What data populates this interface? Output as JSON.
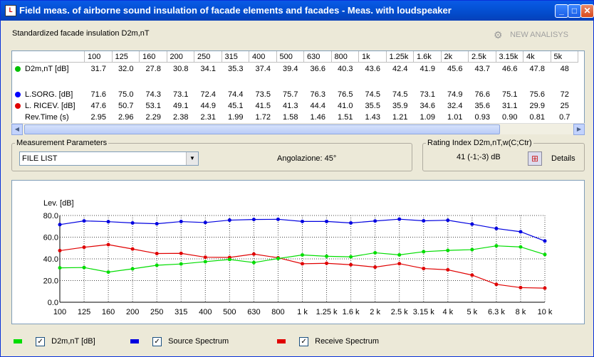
{
  "window": {
    "title": "Field meas. of airborne sound insulation of facade elements and facades - Meas. with loudspeaker",
    "icon_name": "app-icon",
    "minimize": "_",
    "maximize": "□",
    "close": "✕"
  },
  "header": {
    "label": "Standardized facade insulation D2m,nT",
    "new_analysis_label": "NEW ANALISYS",
    "new_analysis_icon": "gears-icon"
  },
  "table": {
    "columns": [
      "100",
      "125",
      "160",
      "200",
      "250",
      "315",
      "400",
      "500",
      "630",
      "800",
      "1k",
      "1.25k",
      "1.6k",
      "2k",
      "2.5k",
      "3.15k",
      "4k",
      "5k"
    ],
    "rows": [
      {
        "label": "D2m,nT [dB]",
        "color": "#00c000",
        "values": [
          "31.7",
          "32.0",
          "27.8",
          "30.8",
          "34.1",
          "35.3",
          "37.4",
          "39.4",
          "36.6",
          "40.3",
          "43.6",
          "42.4",
          "41.9",
          "45.6",
          "43.7",
          "46.6",
          "47.8",
          "48"
        ]
      },
      {
        "label": "",
        "color": "",
        "values": []
      },
      {
        "label": "L.SORG. [dB]",
        "color": "#0000ff",
        "values": [
          "71.6",
          "75.0",
          "74.3",
          "73.1",
          "72.4",
          "74.4",
          "73.5",
          "75.7",
          "76.3",
          "76.5",
          "74.5",
          "74.5",
          "73.1",
          "74.9",
          "76.6",
          "75.1",
          "75.6",
          "72"
        ]
      },
      {
        "label": "L. RICEV. [dB]",
        "color": "#e00000",
        "values": [
          "47.6",
          "50.7",
          "53.1",
          "49.1",
          "44.9",
          "45.1",
          "41.5",
          "41.3",
          "44.4",
          "41.0",
          "35.5",
          "35.9",
          "34.6",
          "32.4",
          "35.6",
          "31.1",
          "29.9",
          "25"
        ]
      },
      {
        "label": "Rev.Time (s)",
        "color": "",
        "values": [
          "2.95",
          "2.96",
          "2.29",
          "2.38",
          "2.31",
          "1.99",
          "1.72",
          "1.58",
          "1.46",
          "1.51",
          "1.43",
          "1.21",
          "1.09",
          "1.01",
          "0.93",
          "0.90",
          "0.81",
          "0.7"
        ]
      }
    ]
  },
  "measurement": {
    "legend": "Measurement Parameters",
    "file_list_value": "FILE LIST",
    "angle_label": "Angolazione: 45°"
  },
  "rating": {
    "legend": "Rating Index D2m,nT,w(C;Ctr)",
    "value": "41 (-1;-3) dB",
    "details_label": "Details",
    "details_icon": "details-icon"
  },
  "chart_data": {
    "type": "line",
    "ylabel": "Lev. [dB]",
    "ylim": [
      0,
      80
    ],
    "yticks": [
      "0.0",
      "20.0",
      "40.0",
      "60.0",
      "80.0"
    ],
    "grid": true,
    "categories": [
      "100",
      "125",
      "160",
      "200",
      "250",
      "315",
      "400",
      "500",
      "630",
      "800",
      "1 k",
      "1.25 k",
      "1.6 k",
      "2 k",
      "2.5 k",
      "3.15 k",
      "4 k",
      "5 k",
      "6.3 k",
      "8 k",
      "10 k"
    ],
    "series": [
      {
        "name": "Source Spectrum",
        "color": "#0000e0",
        "values": [
          71.6,
          75.0,
          74.3,
          73.1,
          72.4,
          74.4,
          73.5,
          75.7,
          76.3,
          76.5,
          74.5,
          74.5,
          73.1,
          74.9,
          76.6,
          75.1,
          75.6,
          72.0,
          68.0,
          65.0,
          56.5
        ]
      },
      {
        "name": "Receive Spectrum",
        "color": "#e00000",
        "values": [
          47.6,
          50.7,
          53.1,
          49.1,
          44.9,
          45.1,
          41.5,
          41.3,
          44.4,
          41.0,
          35.5,
          35.9,
          34.6,
          32.4,
          35.6,
          31.1,
          29.9,
          25.0,
          16.5,
          13.5,
          13.0
        ]
      },
      {
        "name": "D2m,nT [dB]",
        "color": "#00dd00",
        "values": [
          31.7,
          32.0,
          27.8,
          30.8,
          34.1,
          35.3,
          37.4,
          39.4,
          36.6,
          40.3,
          43.6,
          42.4,
          41.9,
          45.6,
          43.7,
          46.6,
          47.8,
          48.5,
          52.0,
          51.0,
          44.0
        ]
      }
    ]
  },
  "legend": [
    {
      "label": "D2m,nT [dB]",
      "color": "#00dd00",
      "checked": "✓"
    },
    {
      "label": "Source Spectrum",
      "color": "#0000e0",
      "checked": "✓"
    },
    {
      "label": "Receive Spectrum",
      "color": "#e00000",
      "checked": "✓"
    }
  ]
}
